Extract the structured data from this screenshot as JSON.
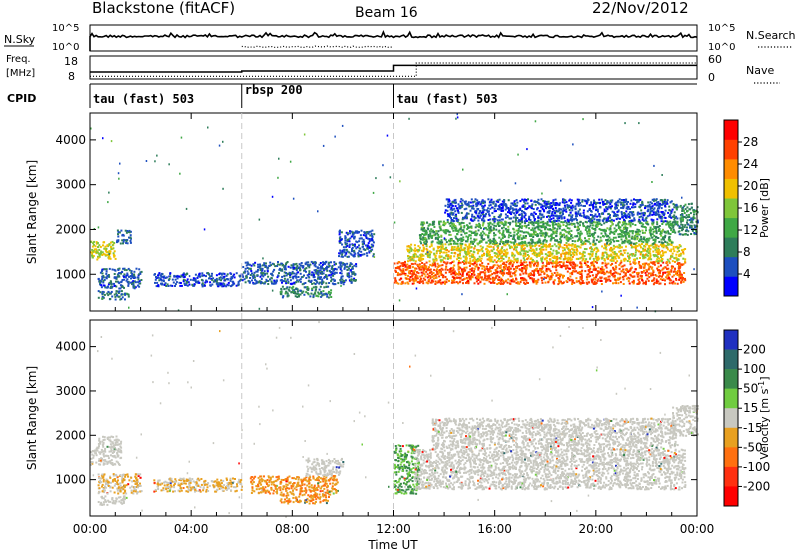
{
  "header": {
    "title": "Blackstone (fitACF)",
    "beam": "Beam 16",
    "date": "22/Nov/2012"
  },
  "strips": {
    "noise": {
      "left_label": "N.Sky",
      "right_label": "N.Search",
      "left_ticks": [
        "10^5",
        "10^0"
      ],
      "right_ticks": [
        "10^5",
        "10^0"
      ]
    },
    "freq": {
      "left_label_top": "Freq.",
      "left_label_bottom": "[MHz]",
      "right_label": "Nave",
      "left_ticks": [
        "18",
        "8"
      ],
      "right_ticks": [
        "60",
        "0"
      ],
      "freq_values": [
        {
          "start": 0,
          "end": 6,
          "value": 10.2
        },
        {
          "start": 6,
          "end": 12,
          "value": 10.8
        },
        {
          "start": 12,
          "end": 24,
          "value": 13.9
        }
      ],
      "nave_values": [
        {
          "start": 0,
          "end": 12.9,
          "value": 5
        },
        {
          "start": 12.9,
          "end": 24,
          "value": 45
        }
      ]
    },
    "cpid": {
      "label": "CPID",
      "segments": [
        {
          "start": 0,
          "label": "tau (fast) 503"
        },
        {
          "start": 6,
          "label": "rbsp 200"
        },
        {
          "start": 12,
          "label": "tau (fast) 503"
        }
      ]
    }
  },
  "chart_data": [
    {
      "type": "heatmap",
      "name": "Power",
      "ylabel": "Slant Range [km]",
      "yticks": [
        1000,
        2000,
        3000,
        4000
      ],
      "ylim": [
        180,
        4600
      ],
      "xlim": [
        0,
        24
      ],
      "colorbar": {
        "label": "Power [dB]",
        "ticks": [
          4,
          8,
          12,
          16,
          20,
          24,
          28
        ],
        "range": [
          0,
          32
        ],
        "colors": [
          "#0000ff",
          "#1d4fbf",
          "#2e7d5a",
          "#3fa845",
          "#7fc63a",
          "#f0c000",
          "#ff8c00",
          "#ff4000",
          "#ff0000"
        ]
      },
      "echo_regions": [
        {
          "t0": 0.0,
          "t1": 1.0,
          "r0": 1350,
          "r1": 1750,
          "level": 18
        },
        {
          "t0": 0.3,
          "t1": 2.0,
          "r0": 700,
          "r1": 1150,
          "level": 6
        },
        {
          "t0": 0.3,
          "t1": 1.5,
          "r0": 450,
          "r1": 650,
          "level": 8
        },
        {
          "t0": 1.0,
          "t1": 1.6,
          "r0": 1700,
          "r1": 2000,
          "level": 7
        },
        {
          "t0": 2.5,
          "t1": 6.0,
          "r0": 750,
          "r1": 1050,
          "level": 5
        },
        {
          "t0": 6.0,
          "t1": 10.5,
          "r0": 800,
          "r1": 1300,
          "level": 6
        },
        {
          "t0": 7.5,
          "t1": 9.5,
          "r0": 500,
          "r1": 750,
          "level": 9
        },
        {
          "t0": 9.8,
          "t1": 11.2,
          "r0": 1400,
          "r1": 2000,
          "level": 5
        },
        {
          "t0": 12.0,
          "t1": 23.5,
          "r0": 800,
          "r1": 1300,
          "level": 26
        },
        {
          "t0": 12.5,
          "t1": 23.5,
          "r0": 1300,
          "r1": 1700,
          "level": 19
        },
        {
          "t0": 13.0,
          "t1": 23.0,
          "r0": 1700,
          "r1": 2200,
          "level": 12
        },
        {
          "t0": 14.0,
          "t1": 23.0,
          "r0": 2200,
          "r1": 2700,
          "level": 5
        },
        {
          "t0": 23.0,
          "t1": 24.0,
          "r0": 1900,
          "r1": 2600,
          "level": 9
        }
      ]
    },
    {
      "type": "heatmap",
      "name": "Velocity",
      "ylabel": "Slant Range [km]",
      "yticks": [
        1000,
        2000,
        3000,
        4000
      ],
      "ylim": [
        180,
        4600
      ],
      "xlim": [
        0,
        24
      ],
      "colorbar": {
        "label_main": "Velocity [m s",
        "label_sup": "-1",
        "label_end": "]",
        "ticks": [
          "200",
          "100",
          "50",
          "15",
          "-15",
          "-50",
          "-100",
          "-200"
        ],
        "colors": [
          "#2030c0",
          "#2e6a6a",
          "#3a8a4a",
          "#70cc40",
          "#c8c8c0",
          "#e8a020",
          "#ff7010",
          "#ff3010",
          "#ff0000"
        ]
      },
      "echo_regions": [
        {
          "t0": 0.0,
          "t1": 1.2,
          "r0": 1350,
          "r1": 1750,
          "level": "-15..15"
        },
        {
          "t0": 0.3,
          "t1": 1.2,
          "r0": 1750,
          "r1": 2000,
          "level": "-15..15"
        },
        {
          "t0": 0.3,
          "t1": 2.0,
          "r0": 700,
          "r1": 1150,
          "level": "-50..-15"
        },
        {
          "t0": 0.3,
          "t1": 1.5,
          "r0": 450,
          "r1": 650,
          "level": "-15..15"
        },
        {
          "t0": 2.5,
          "t1": 6.0,
          "r0": 750,
          "r1": 1050,
          "level": "-50..-15"
        },
        {
          "t0": 6.3,
          "t1": 9.8,
          "r0": 700,
          "r1": 1100,
          "level": "-100..-50"
        },
        {
          "t0": 7.5,
          "t1": 9.5,
          "r0": 480,
          "r1": 700,
          "level": "-100..-50"
        },
        {
          "t0": 8.5,
          "t1": 10.0,
          "r0": 1100,
          "r1": 1500,
          "level": "-15..15"
        },
        {
          "t0": 12.0,
          "t1": 13.0,
          "r0": 700,
          "r1": 1800,
          "level": "15..50"
        },
        {
          "t0": 12.8,
          "t1": 23.5,
          "r0": 800,
          "r1": 1700,
          "level": "-15..15"
        },
        {
          "t0": 13.5,
          "t1": 23.2,
          "r0": 1700,
          "r1": 2400,
          "level": "-15..15"
        },
        {
          "t0": 23.0,
          "t1": 24.0,
          "r0": 2000,
          "r1": 2700,
          "level": "-15..15"
        }
      ]
    }
  ],
  "time_axis": {
    "label": "Time UT",
    "ticks": [
      "00:00",
      "04:00",
      "08:00",
      "12:00",
      "16:00",
      "20:00",
      "00:00"
    ],
    "tick_hours": [
      0,
      4,
      8,
      12,
      16,
      20,
      24
    ],
    "mode_change_hours": [
      6,
      12
    ]
  }
}
